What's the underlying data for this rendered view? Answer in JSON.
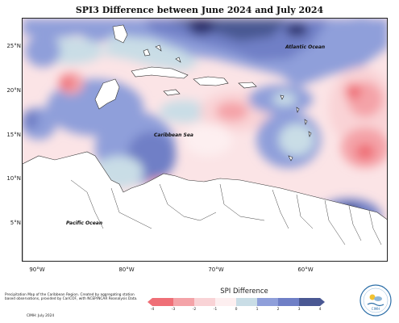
{
  "title": "SPI3 Difference between June 2024 and July 2024",
  "ocean_labels": {
    "atlantic": "Atlantic Ocean",
    "caribbean": "Caribbean Sea",
    "pacific": "Pacific Ocean"
  },
  "lat_labels": [
    "25°N",
    "20°N",
    "15°N",
    "10°N",
    "5°N"
  ],
  "lon_labels": [
    "90°W",
    "80°W",
    "70°W",
    "60°W"
  ],
  "legend": {
    "title": "SPI Difference",
    "ticks": [
      "-4",
      "-3",
      "-2",
      "-1",
      "0",
      "1",
      "2",
      "3",
      "4"
    ],
    "colors": [
      "#ef6f77",
      "#f4a3a8",
      "#f9d3d6",
      "#fdeff0",
      "#c9dde6",
      "#8f9fda",
      "#6f7fc6",
      "#4a5893"
    ]
  },
  "footer": {
    "description": "Precipitation Map of the Caribbean Region. Created by aggregating station based observations, provided by CariCOF, with NCEP/NCAR Reanalysis Data.",
    "credit": "CIMH: July 2024"
  },
  "logo_text": "CIMH"
}
